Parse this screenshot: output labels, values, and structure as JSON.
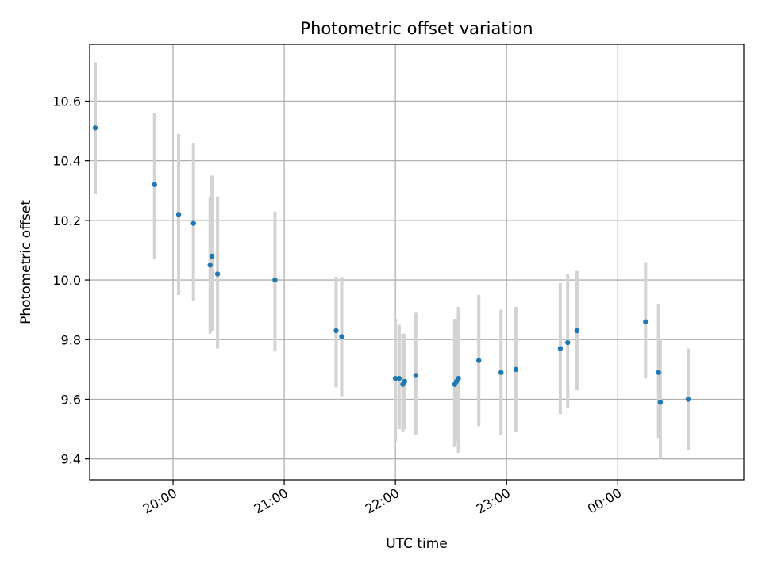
{
  "chart_data": {
    "type": "scatter",
    "title": "Photometric offset variation",
    "xlabel": "UTC time",
    "ylabel": "Photometric offset",
    "x_axis": {
      "kind": "time",
      "range": [
        "19:15",
        "01:08"
      ],
      "ticks": [
        {
          "t": "20:00",
          "label": "20:00"
        },
        {
          "t": "21:00",
          "label": "21:00"
        },
        {
          "t": "22:00",
          "label": "22:00"
        },
        {
          "t": "23:00",
          "label": "23:00"
        },
        {
          "t": "00:00",
          "label": "00:00"
        }
      ]
    },
    "y_axis": {
      "range": [
        9.33,
        10.79
      ],
      "ticks": [
        9.4,
        9.6,
        9.8,
        10.0,
        10.2,
        10.4,
        10.6
      ],
      "tick_labels": [
        "9.4",
        "9.6",
        "9.8",
        "10.0",
        "10.2",
        "10.4",
        "10.6"
      ]
    },
    "grid": true,
    "point_color": "#1f77b4",
    "errorbar_color": "#d3d3d3",
    "points": [
      {
        "t": "19:18",
        "y": 10.51,
        "lo": 10.29,
        "hi": 10.73
      },
      {
        "t": "19:50",
        "y": 10.32,
        "lo": 10.07,
        "hi": 10.56
      },
      {
        "t": "20:03",
        "y": 10.22,
        "lo": 9.95,
        "hi": 10.49
      },
      {
        "t": "20:11",
        "y": 10.19,
        "lo": 9.93,
        "hi": 10.46
      },
      {
        "t": "20:20",
        "y": 10.05,
        "lo": 9.82,
        "hi": 10.28
      },
      {
        "t": "20:21",
        "y": 10.08,
        "lo": 9.83,
        "hi": 10.35
      },
      {
        "t": "20:24",
        "y": 10.02,
        "lo": 9.77,
        "hi": 10.28
      },
      {
        "t": "20:55",
        "y": 10.0,
        "lo": 9.76,
        "hi": 10.23
      },
      {
        "t": "21:28",
        "y": 9.83,
        "lo": 9.64,
        "hi": 10.01
      },
      {
        "t": "21:31",
        "y": 9.81,
        "lo": 9.61,
        "hi": 10.01
      },
      {
        "t": "22:00",
        "y": 9.67,
        "lo": 9.46,
        "hi": 9.87
      },
      {
        "t": "22:02",
        "y": 9.67,
        "lo": 9.5,
        "hi": 9.85
      },
      {
        "t": "22:04",
        "y": 9.65,
        "lo": 9.49,
        "hi": 9.82
      },
      {
        "t": "22:05",
        "y": 9.66,
        "lo": 9.5,
        "hi": 9.82
      },
      {
        "t": "22:11",
        "y": 9.68,
        "lo": 9.48,
        "hi": 9.89
      },
      {
        "t": "22:32",
        "y": 9.65,
        "lo": 9.44,
        "hi": 9.87
      },
      {
        "t": "22:33",
        "y": 9.66,
        "lo": 9.46,
        "hi": 9.87
      },
      {
        "t": "22:34",
        "y": 9.67,
        "lo": 9.42,
        "hi": 9.91
      },
      {
        "t": "22:45",
        "y": 9.73,
        "lo": 9.51,
        "hi": 9.95
      },
      {
        "t": "22:57",
        "y": 9.69,
        "lo": 9.48,
        "hi": 9.9
      },
      {
        "t": "23:05",
        "y": 9.7,
        "lo": 9.49,
        "hi": 9.91
      },
      {
        "t": "23:29",
        "y": 9.77,
        "lo": 9.55,
        "hi": 9.99
      },
      {
        "t": "23:33",
        "y": 9.79,
        "lo": 9.57,
        "hi": 10.02
      },
      {
        "t": "23:38",
        "y": 9.83,
        "lo": 9.63,
        "hi": 10.03
      },
      {
        "t": "00:15",
        "y": 9.86,
        "lo": 9.67,
        "hi": 10.06
      },
      {
        "t": "00:22",
        "y": 9.69,
        "lo": 9.47,
        "hi": 9.92
      },
      {
        "t": "00:23",
        "y": 9.59,
        "lo": 9.4,
        "hi": 9.8
      },
      {
        "t": "00:38",
        "y": 9.6,
        "lo": 9.43,
        "hi": 9.77
      }
    ]
  }
}
